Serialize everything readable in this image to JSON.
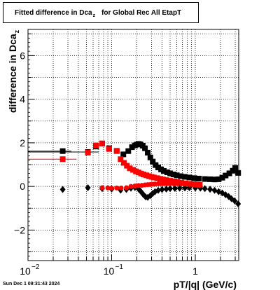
{
  "title": {
    "main": "Fitted difference in Dca",
    "subscript": "z",
    "suffix": "for Global Rec All EtapT"
  },
  "y_axis_label": {
    "main": "difference in Dca",
    "subscript": "z"
  },
  "x_axis_label": "pT/|q| (GeV/c)",
  "timestamp": "Sun Dec  1 09:31:43 2024",
  "colors": {
    "series_black": "#000000",
    "series_red": "#ff0000",
    "grid": "#000000"
  },
  "chart_data": {
    "type": "scatter",
    "x_scale": "log",
    "xlim": [
      0.01,
      3.3
    ],
    "ylim": [
      -3.4,
      7.2
    ],
    "x_ticks": [
      {
        "value": 0.01,
        "label": "10",
        "sup": "−2"
      },
      {
        "value": 0.1,
        "label": "10",
        "sup": "−1"
      },
      {
        "value": 1,
        "label": "1",
        "sup": ""
      }
    ],
    "y_ticks": [
      -2,
      0,
      2,
      4,
      6
    ],
    "y_tick_labels": [
      "−2",
      "0",
      "2",
      "4",
      "6"
    ],
    "grid": true,
    "series": [
      {
        "color": "black",
        "marker": "square",
        "points": [
          [
            0.026,
            1.62
          ],
          [
            0.052,
            1.58
          ],
          [
            0.065,
            1.83
          ],
          [
            0.077,
            1.97
          ],
          [
            0.093,
            1.75
          ],
          [
            0.115,
            1.63
          ],
          [
            0.138,
            1.47
          ],
          [
            0.158,
            1.62
          ],
          [
            0.175,
            1.8
          ],
          [
            0.19,
            1.88
          ],
          [
            0.2,
            1.92
          ],
          [
            0.21,
            1.95
          ],
          [
            0.22,
            1.93
          ],
          [
            0.235,
            1.87
          ],
          [
            0.25,
            1.75
          ],
          [
            0.27,
            1.55
          ],
          [
            0.29,
            1.33
          ],
          [
            0.31,
            1.14
          ],
          [
            0.335,
            0.98
          ],
          [
            0.36,
            0.87
          ],
          [
            0.39,
            0.78
          ],
          [
            0.42,
            0.71
          ],
          [
            0.46,
            0.65
          ],
          [
            0.5,
            0.6
          ],
          [
            0.55,
            0.55
          ],
          [
            0.6,
            0.51
          ],
          [
            0.67,
            0.47
          ],
          [
            0.75,
            0.44
          ],
          [
            0.85,
            0.41
          ],
          [
            0.97,
            0.38
          ],
          [
            1.1,
            0.36
          ],
          [
            1.3,
            0.34
          ],
          [
            1.5,
            0.33
          ],
          [
            1.7,
            0.32
          ],
          [
            1.9,
            0.33
          ],
          [
            2.1,
            0.4
          ],
          [
            2.3,
            0.5
          ],
          [
            2.55,
            0.6
          ],
          [
            2.8,
            0.72
          ],
          [
            3.0,
            0.85
          ],
          [
            3.25,
            0.62
          ]
        ],
        "errors": [
          [
            0.026,
            0.007
          ],
          [
            0.052,
            0.018
          ]
        ]
      },
      {
        "color": "red",
        "marker": "square",
        "points": [
          [
            0.026,
            1.25
          ],
          [
            0.052,
            1.55
          ],
          [
            0.065,
            1.88
          ],
          [
            0.077,
            1.97
          ],
          [
            0.093,
            1.72
          ],
          [
            0.115,
            1.62
          ],
          [
            0.128,
            1.25
          ],
          [
            0.14,
            1.08
          ],
          [
            0.152,
            0.95
          ],
          [
            0.165,
            0.83
          ],
          [
            0.18,
            0.76
          ],
          [
            0.195,
            0.69
          ],
          [
            0.21,
            0.64
          ],
          [
            0.225,
            0.59
          ],
          [
            0.24,
            0.55
          ],
          [
            0.26,
            0.51
          ],
          [
            0.28,
            0.47
          ],
          [
            0.3,
            0.44
          ],
          [
            0.32,
            0.41
          ],
          [
            0.35,
            0.38
          ],
          [
            0.38,
            0.35
          ],
          [
            0.41,
            0.32
          ],
          [
            0.45,
            0.29
          ],
          [
            0.5,
            0.26
          ],
          [
            0.55,
            0.23
          ],
          [
            0.61,
            0.2
          ],
          [
            0.68,
            0.17
          ],
          [
            0.76,
            0.14
          ],
          [
            0.85,
            0.12
          ],
          [
            0.95,
            0.1
          ],
          [
            1.05,
            0.08
          ],
          [
            1.13,
            0.07
          ]
        ],
        "errors": [
          [
            0.026,
            0.012
          ]
        ]
      },
      {
        "color": "black",
        "marker": "diamond",
        "points": [
          [
            0.026,
            -0.14
          ],
          [
            0.052,
            -0.06
          ],
          [
            0.077,
            -0.1
          ],
          [
            0.1,
            -0.12
          ],
          [
            0.128,
            -0.17
          ],
          [
            0.15,
            -0.14
          ],
          [
            0.17,
            -0.08
          ],
          [
            0.19,
            -0.05
          ],
          [
            0.21,
            -0.12
          ],
          [
            0.225,
            -0.25
          ],
          [
            0.24,
            -0.38
          ],
          [
            0.255,
            -0.48
          ],
          [
            0.27,
            -0.5
          ],
          [
            0.29,
            -0.42
          ],
          [
            0.31,
            -0.32
          ],
          [
            0.33,
            -0.24
          ],
          [
            0.36,
            -0.18
          ],
          [
            0.4,
            -0.14
          ],
          [
            0.45,
            -0.12
          ],
          [
            0.5,
            -0.1
          ],
          [
            0.57,
            -0.09
          ],
          [
            0.65,
            -0.08
          ],
          [
            0.75,
            -0.07
          ],
          [
            0.85,
            -0.06
          ],
          [
            1.0,
            -0.07
          ],
          [
            1.15,
            -0.08
          ],
          [
            1.3,
            -0.1
          ],
          [
            1.5,
            -0.13
          ],
          [
            1.7,
            -0.18
          ],
          [
            1.9,
            -0.24
          ],
          [
            2.1,
            -0.3
          ],
          [
            2.3,
            -0.38
          ],
          [
            2.5,
            -0.46
          ],
          [
            2.7,
            -0.56
          ],
          [
            2.95,
            -0.66
          ],
          [
            3.25,
            -0.8
          ]
        ]
      },
      {
        "color": "red",
        "marker": "circle",
        "points": [
          [
            0.077,
            -0.06
          ],
          [
            0.09,
            -0.07
          ],
          [
            0.1,
            -0.08
          ],
          [
            0.115,
            -0.07
          ],
          [
            0.13,
            -0.07
          ],
          [
            0.15,
            -0.06
          ],
          [
            0.17,
            0.0
          ],
          [
            0.19,
            0.02
          ],
          [
            0.21,
            0.04
          ],
          [
            0.23,
            0.05
          ],
          [
            0.25,
            0.07
          ],
          [
            0.27,
            0.08
          ],
          [
            0.29,
            0.09
          ],
          [
            0.31,
            0.1
          ],
          [
            0.33,
            0.11
          ],
          [
            0.36,
            0.12
          ],
          [
            0.39,
            0.13
          ],
          [
            0.42,
            0.13
          ],
          [
            0.46,
            0.13
          ],
          [
            0.5,
            0.14
          ],
          [
            0.55,
            0.13
          ],
          [
            0.61,
            0.13
          ],
          [
            0.68,
            0.12
          ],
          [
            0.76,
            0.11
          ],
          [
            0.85,
            0.09
          ],
          [
            0.95,
            0.07
          ],
          [
            1.05,
            0.05
          ],
          [
            1.13,
            0.04
          ]
        ]
      }
    ]
  }
}
